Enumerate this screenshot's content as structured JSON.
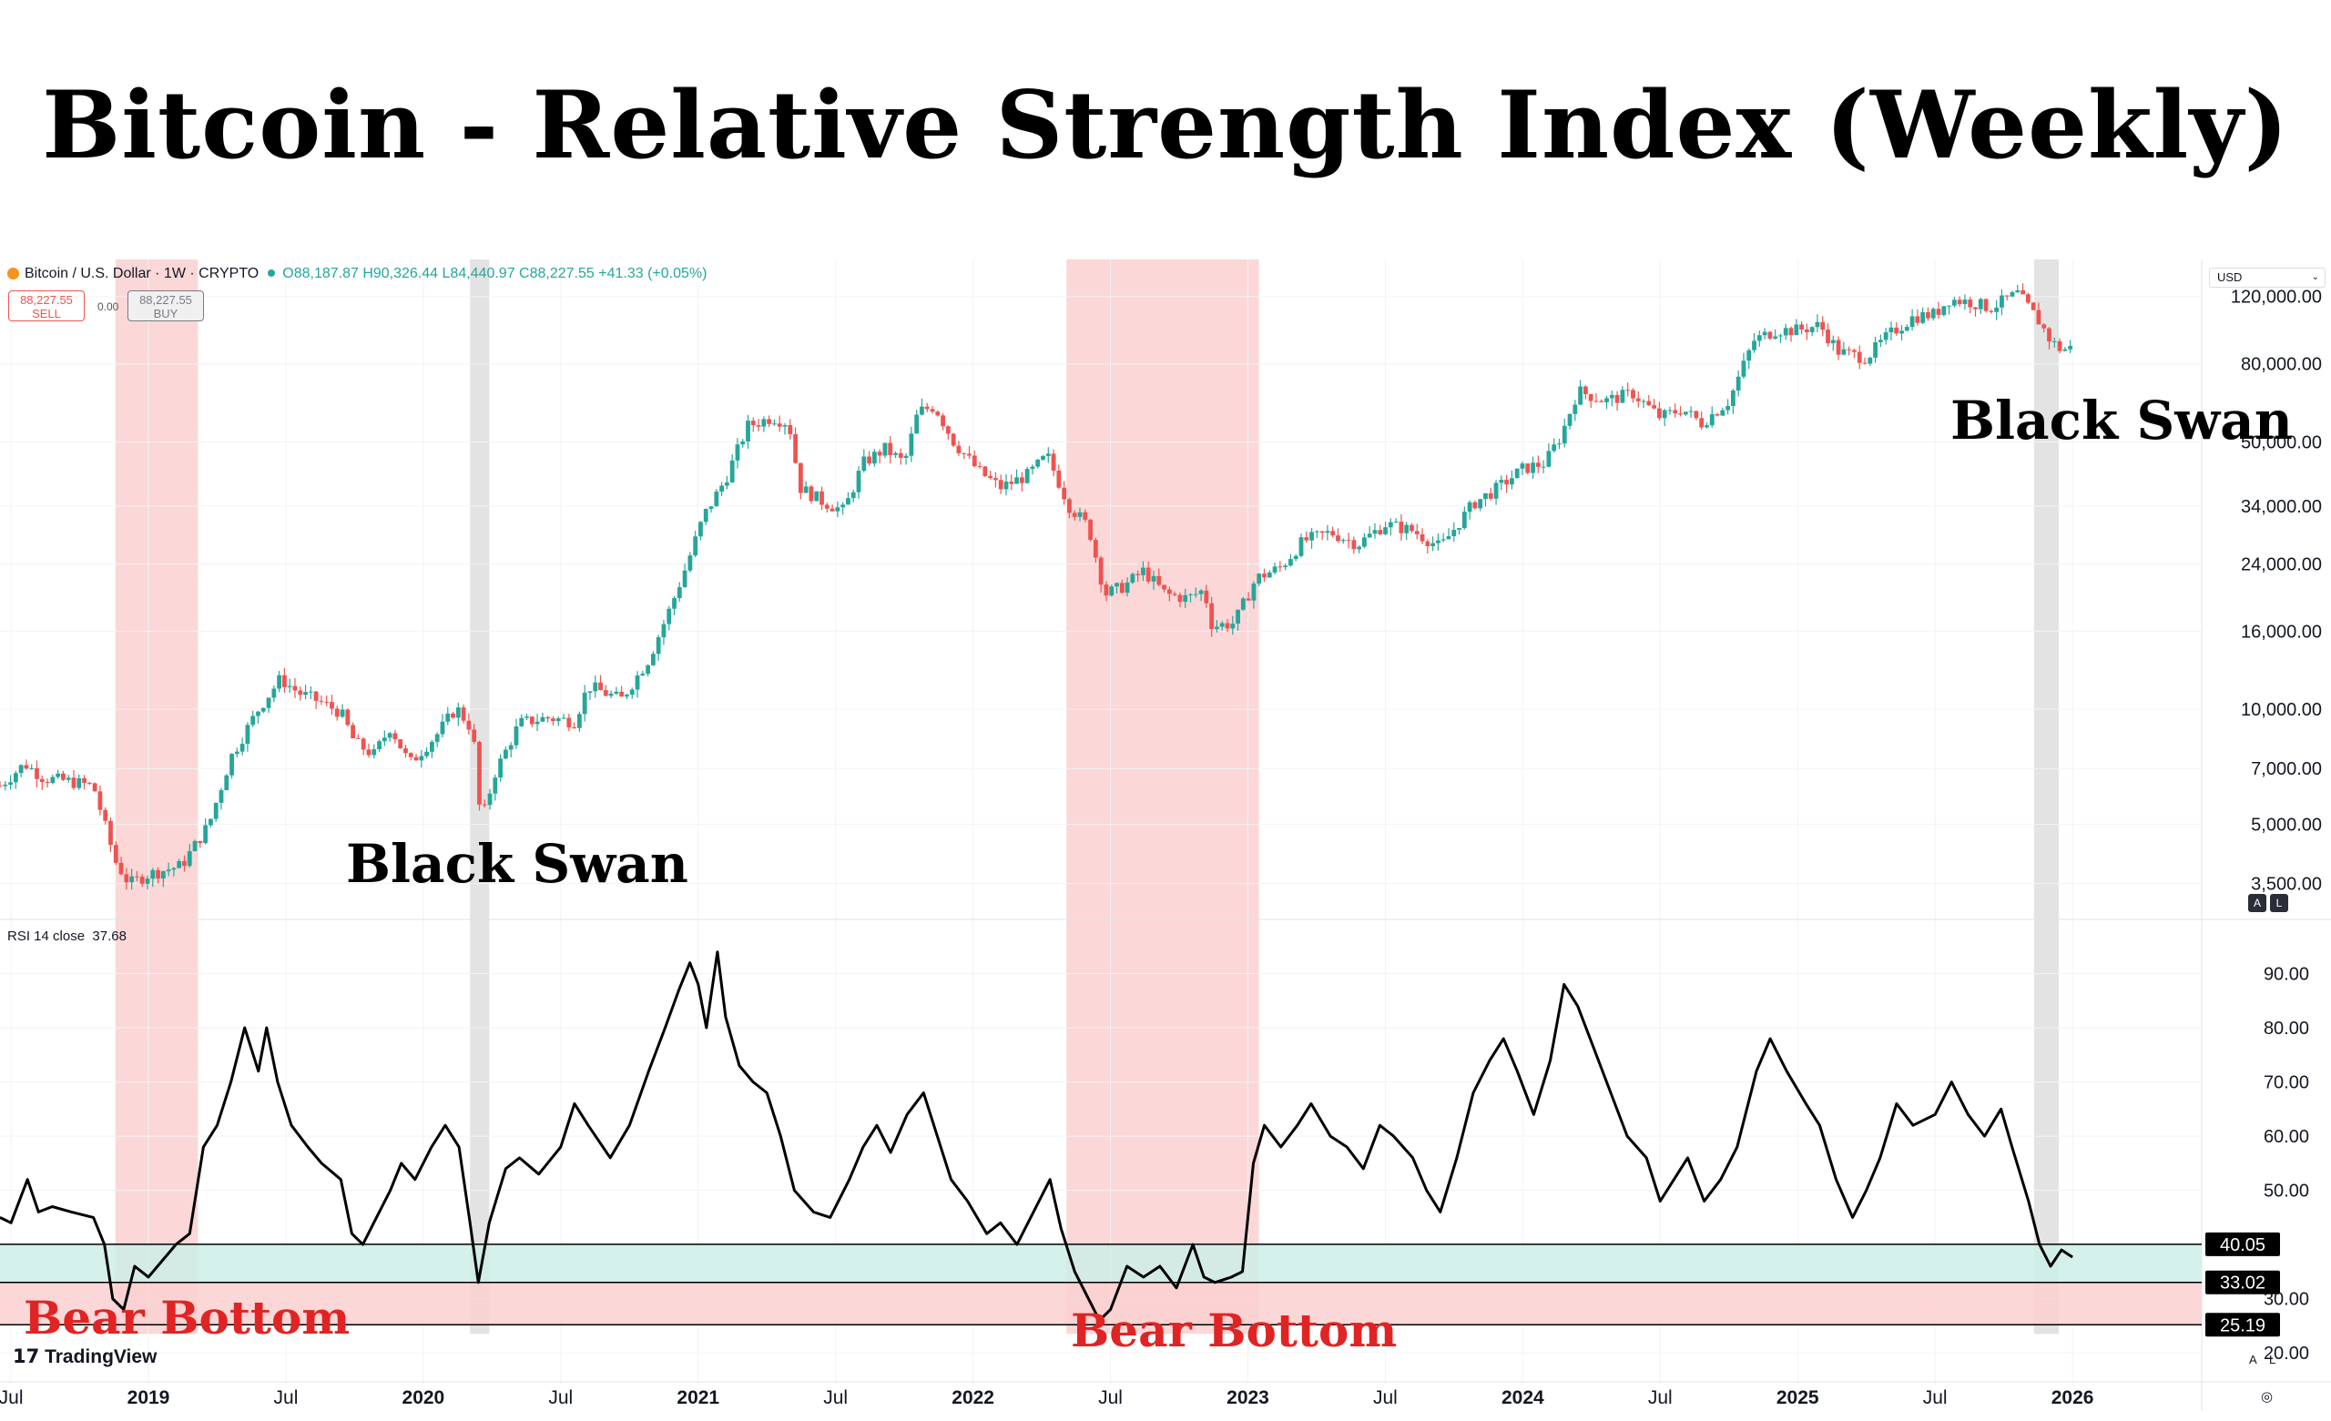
{
  "title": "Bitcoin - Relative Strength Index (Weekly)",
  "header": {
    "symbol": "Bitcoin / U.S. Dollar · 1W · CRYPTO",
    "open": "O88,187.87",
    "high": "H90,326.44",
    "low": "L84,440.97",
    "close": "C88,227.55",
    "change": "+41.33 (+0.05%)",
    "sell_price": "88,227.55",
    "sell_label": "SELL",
    "spread": "0.00",
    "buy_price": "88,227.55",
    "buy_label": "BUY",
    "currency": "USD",
    "rsi_label": "RSI 14 close",
    "rsi_value": "37.68",
    "brand": "TradingView",
    "scale_a": "A",
    "scale_l": "L",
    "settings_symbol": "◎"
  },
  "annotations": {
    "black_swan_1": "Black Swan",
    "black_swan_2": "Black Swan",
    "bear_bottom_1": "Bear Bottom",
    "bear_bottom_2": "Bear Bottom"
  },
  "colors": {
    "bull": "#26a69a",
    "bear": "#ef5350",
    "rsi_line": "#000000",
    "bear_band": "#fbd7d7",
    "swan_band": "#e3e3e3",
    "teal_zone": "#cdeee8",
    "red_zone": "#fbd0d0",
    "annotation_red": "#e02424"
  },
  "chart_data": [
    {
      "type": "candlestick",
      "title": "Bitcoin / U.S. Dollar · 1W · CRYPTO",
      "yscale": "log",
      "ylim": [
        2900,
        150000
      ],
      "y_ticks": [
        "120,000.00",
        "80,000.00",
        "50,000.00",
        "34,000.00",
        "24,000.00",
        "16,000.00",
        "10,000.00",
        "7,000.00",
        "5,000.00",
        "3,500.00"
      ],
      "y_tick_values": [
        120000,
        80000,
        50000,
        34000,
        24000,
        16000,
        10000,
        7000,
        5000,
        3500
      ],
      "x_ticks": [
        "Jul",
        "2019",
        "Jul",
        "2020",
        "Jul",
        "2021",
        "Jul",
        "2022",
        "Jul",
        "2023",
        "Jul",
        "2024",
        "Jul",
        "2025",
        "Jul",
        "2026"
      ],
      "x_tick_dates": [
        2018.5,
        2019.0,
        2019.5,
        2020.0,
        2020.5,
        2021.0,
        2021.5,
        2022.0,
        2022.5,
        2023.0,
        2023.5,
        2024.0,
        2024.5,
        2025.0,
        2025.5,
        2026.0
      ],
      "x_range": [
        2018.46,
        2026.47
      ],
      "price_path": [
        [
          2018.46,
          6300
        ],
        [
          2018.55,
          7200
        ],
        [
          2018.62,
          6600
        ],
        [
          2018.7,
          6500
        ],
        [
          2018.8,
          6300
        ],
        [
          2018.88,
          4000
        ],
        [
          2018.93,
          3500
        ],
        [
          2019.0,
          3700
        ],
        [
          2019.12,
          3900
        ],
        [
          2019.22,
          5000
        ],
        [
          2019.3,
          7500
        ],
        [
          2019.4,
          10000
        ],
        [
          2019.48,
          12000
        ],
        [
          2019.55,
          11000
        ],
        [
          2019.62,
          10500
        ],
        [
          2019.7,
          9800
        ],
        [
          2019.75,
          8200
        ],
        [
          2019.82,
          7600
        ],
        [
          2019.88,
          9000
        ],
        [
          2019.95,
          7200
        ],
        [
          2020.05,
          8600
        ],
        [
          2020.12,
          10100
        ],
        [
          2020.18,
          8800
        ],
        [
          2020.21,
          5000
        ],
        [
          2020.26,
          6800
        ],
        [
          2020.35,
          9200
        ],
        [
          2020.45,
          9500
        ],
        [
          2020.55,
          9300
        ],
        [
          2020.6,
          11500
        ],
        [
          2020.72,
          10600
        ],
        [
          2020.82,
          13500
        ],
        [
          2020.9,
          18500
        ],
        [
          2020.96,
          24000
        ],
        [
          2021.02,
          32000
        ],
        [
          2021.1,
          40000
        ],
        [
          2021.18,
          55000
        ],
        [
          2021.27,
          58000
        ],
        [
          2021.33,
          56000
        ],
        [
          2021.37,
          38000
        ],
        [
          2021.45,
          35000
        ],
        [
          2021.53,
          33000
        ],
        [
          2021.6,
          44000
        ],
        [
          2021.68,
          48000
        ],
        [
          2021.75,
          44000
        ],
        [
          2021.8,
          60000
        ],
        [
          2021.86,
          62000
        ],
        [
          2021.93,
          50000
        ],
        [
          2022.02,
          42000
        ],
        [
          2022.1,
          38000
        ],
        [
          2022.2,
          41000
        ],
        [
          2022.27,
          46000
        ],
        [
          2022.35,
          34000
        ],
        [
          2022.42,
          30000
        ],
        [
          2022.48,
          20000
        ],
        [
          2022.55,
          21000
        ],
        [
          2022.62,
          23000
        ],
        [
          2022.7,
          20000
        ],
        [
          2022.78,
          19500
        ],
        [
          2022.84,
          20500
        ],
        [
          2022.87,
          16500
        ],
        [
          2022.95,
          16800
        ],
        [
          2023.03,
          22000
        ],
        [
          2023.12,
          23500
        ],
        [
          2023.2,
          27500
        ],
        [
          2023.3,
          29000
        ],
        [
          2023.4,
          27000
        ],
        [
          2023.5,
          30500
        ],
        [
          2023.6,
          29300
        ],
        [
          2023.7,
          26500
        ],
        [
          2023.82,
          34500
        ],
        [
          2023.9,
          37500
        ],
        [
          2024.0,
          42500
        ],
        [
          2024.08,
          44000
        ],
        [
          2024.14,
          52000
        ],
        [
          2024.2,
          68000
        ],
        [
          2024.3,
          64000
        ],
        [
          2024.4,
          67000
        ],
        [
          2024.5,
          58000
        ],
        [
          2024.58,
          61000
        ],
        [
          2024.65,
          56000
        ],
        [
          2024.75,
          64000
        ],
        [
          2024.84,
          92000
        ],
        [
          2024.92,
          98000
        ],
        [
          2025.0,
          98000
        ],
        [
          2025.08,
          101000
        ],
        [
          2025.15,
          86000
        ],
        [
          2025.25,
          83000
        ],
        [
          2025.33,
          95000
        ],
        [
          2025.42,
          106000
        ],
        [
          2025.5,
          108000
        ],
        [
          2025.55,
          118000
        ],
        [
          2025.63,
          116000
        ],
        [
          2025.7,
          112000
        ],
        [
          2025.76,
          118000
        ],
        [
          2025.8,
          122000
        ],
        [
          2025.85,
          110000
        ],
        [
          2025.88,
          103000
        ],
        [
          2025.92,
          92000
        ],
        [
          2025.96,
          87000
        ],
        [
          2026.0,
          88228
        ]
      ]
    },
    {
      "type": "line",
      "title": "RSI 14 close",
      "current_value": 37.68,
      "ylim": [
        16,
        100
      ],
      "y_ticks": [
        "90.00",
        "80.00",
        "70.00",
        "60.00",
        "50.00",
        "30.00",
        "20.00"
      ],
      "y_tick_values": [
        90,
        80,
        70,
        60,
        50,
        30,
        20
      ],
      "price_labels": [
        "40.05",
        "33.02",
        "25.19"
      ],
      "levels": [
        40.05,
        33.02,
        25.19
      ],
      "x_range": [
        2018.46,
        2026.47
      ],
      "series": [
        {
          "name": "RSI",
          "points": [
            [
              2018.46,
              45
            ],
            [
              2018.5,
              44
            ],
            [
              2018.53,
              48
            ],
            [
              2018.56,
              52
            ],
            [
              2018.6,
              46
            ],
            [
              2018.65,
              47
            ],
            [
              2018.72,
              46
            ],
            [
              2018.8,
              45
            ],
            [
              2018.84,
              40
            ],
            [
              2018.87,
              30
            ],
            [
              2018.91,
              28
            ],
            [
              2018.95,
              36
            ],
            [
              2019.0,
              34
            ],
            [
              2019.05,
              37
            ],
            [
              2019.1,
              40
            ],
            [
              2019.15,
              42
            ],
            [
              2019.2,
              58
            ],
            [
              2019.25,
              62
            ],
            [
              2019.3,
              70
            ],
            [
              2019.35,
              80
            ],
            [
              2019.4,
              72
            ],
            [
              2019.43,
              80
            ],
            [
              2019.47,
              70
            ],
            [
              2019.52,
              62
            ],
            [
              2019.58,
              58
            ],
            [
              2019.63,
              55
            ],
            [
              2019.7,
              52
            ],
            [
              2019.74,
              42
            ],
            [
              2019.78,
              40
            ],
            [
              2019.82,
              44
            ],
            [
              2019.88,
              50
            ],
            [
              2019.92,
              55
            ],
            [
              2019.97,
              52
            ],
            [
              2020.03,
              58
            ],
            [
              2020.08,
              62
            ],
            [
              2020.13,
              58
            ],
            [
              2020.17,
              44
            ],
            [
              2020.2,
              33
            ],
            [
              2020.24,
              44
            ],
            [
              2020.3,
              54
            ],
            [
              2020.35,
              56
            ],
            [
              2020.42,
              53
            ],
            [
              2020.5,
              58
            ],
            [
              2020.55,
              66
            ],
            [
              2020.6,
              62
            ],
            [
              2020.68,
              56
            ],
            [
              2020.75,
              62
            ],
            [
              2020.82,
              72
            ],
            [
              2020.88,
              80
            ],
            [
              2020.93,
              87
            ],
            [
              2020.97,
              92
            ],
            [
              2021.0,
              88
            ],
            [
              2021.03,
              80
            ],
            [
              2021.07,
              94
            ],
            [
              2021.1,
              82
            ],
            [
              2021.15,
              73
            ],
            [
              2021.2,
              70
            ],
            [
              2021.25,
              68
            ],
            [
              2021.3,
              60
            ],
            [
              2021.35,
              50
            ],
            [
              2021.42,
              46
            ],
            [
              2021.48,
              45
            ],
            [
              2021.55,
              52
            ],
            [
              2021.6,
              58
            ],
            [
              2021.65,
              62
            ],
            [
              2021.7,
              57
            ],
            [
              2021.76,
              64
            ],
            [
              2021.82,
              68
            ],
            [
              2021.87,
              60
            ],
            [
              2021.92,
              52
            ],
            [
              2021.98,
              48
            ],
            [
              2022.05,
              42
            ],
            [
              2022.1,
              44
            ],
            [
              2022.16,
              40
            ],
            [
              2022.22,
              46
            ],
            [
              2022.28,
              52
            ],
            [
              2022.32,
              43
            ],
            [
              2022.37,
              35
            ],
            [
              2022.42,
              30
            ],
            [
              2022.46,
              26
            ],
            [
              2022.5,
              28
            ],
            [
              2022.56,
              36
            ],
            [
              2022.62,
              34
            ],
            [
              2022.68,
              36
            ],
            [
              2022.74,
              32
            ],
            [
              2022.8,
              40
            ],
            [
              2022.84,
              34
            ],
            [
              2022.88,
              33
            ],
            [
              2022.94,
              34
            ],
            [
              2022.98,
              35
            ],
            [
              2023.02,
              55
            ],
            [
              2023.06,
              62
            ],
            [
              2023.12,
              58
            ],
            [
              2023.18,
              62
            ],
            [
              2023.23,
              66
            ],
            [
              2023.3,
              60
            ],
            [
              2023.36,
              58
            ],
            [
              2023.42,
              54
            ],
            [
              2023.48,
              62
            ],
            [
              2023.53,
              60
            ],
            [
              2023.6,
              56
            ],
            [
              2023.65,
              50
            ],
            [
              2023.7,
              46
            ],
            [
              2023.76,
              56
            ],
            [
              2023.82,
              68
            ],
            [
              2023.88,
              74
            ],
            [
              2023.93,
              78
            ],
            [
              2023.98,
              72
            ],
            [
              2024.04,
              64
            ],
            [
              2024.1,
              74
            ],
            [
              2024.15,
              88
            ],
            [
              2024.2,
              84
            ],
            [
              2024.26,
              76
            ],
            [
              2024.32,
              68
            ],
            [
              2024.38,
              60
            ],
            [
              2024.45,
              56
            ],
            [
              2024.5,
              48
            ],
            [
              2024.55,
              52
            ],
            [
              2024.6,
              56
            ],
            [
              2024.66,
              48
            ],
            [
              2024.72,
              52
            ],
            [
              2024.78,
              58
            ],
            [
              2024.85,
              72
            ],
            [
              2024.9,
              78
            ],
            [
              2024.96,
              72
            ],
            [
              2025.03,
              66
            ],
            [
              2025.08,
              62
            ],
            [
              2025.14,
              52
            ],
            [
              2025.2,
              45
            ],
            [
              2025.25,
              50
            ],
            [
              2025.3,
              56
            ],
            [
              2025.36,
              66
            ],
            [
              2025.42,
              62
            ],
            [
              2025.5,
              64
            ],
            [
              2025.56,
              70
            ],
            [
              2025.62,
              64
            ],
            [
              2025.68,
              60
            ],
            [
              2025.74,
              65
            ],
            [
              2025.78,
              58
            ],
            [
              2025.84,
              48
            ],
            [
              2025.88,
              40
            ],
            [
              2025.92,
              36
            ],
            [
              2025.96,
              39
            ],
            [
              2026.0,
              37.68
            ]
          ]
        }
      ],
      "zones": [
        {
          "from": 33.02,
          "to": 40.05,
          "color": "teal"
        },
        {
          "from": 25.19,
          "to": 33.02,
          "color": "red"
        }
      ]
    }
  ],
  "highlight_ranges": [
    {
      "label": "bear-bottom-2018",
      "from": 2018.88,
      "to": 2019.18,
      "kind": "bear"
    },
    {
      "label": "black-swan-2020",
      "from": 2020.17,
      "to": 2020.24,
      "kind": "swan"
    },
    {
      "label": "bear-bottom-2022",
      "from": 2022.34,
      "to": 2023.04,
      "kind": "bear"
    },
    {
      "label": "black-swan-2025",
      "from": 2025.86,
      "to": 2025.95,
      "kind": "swan"
    }
  ]
}
